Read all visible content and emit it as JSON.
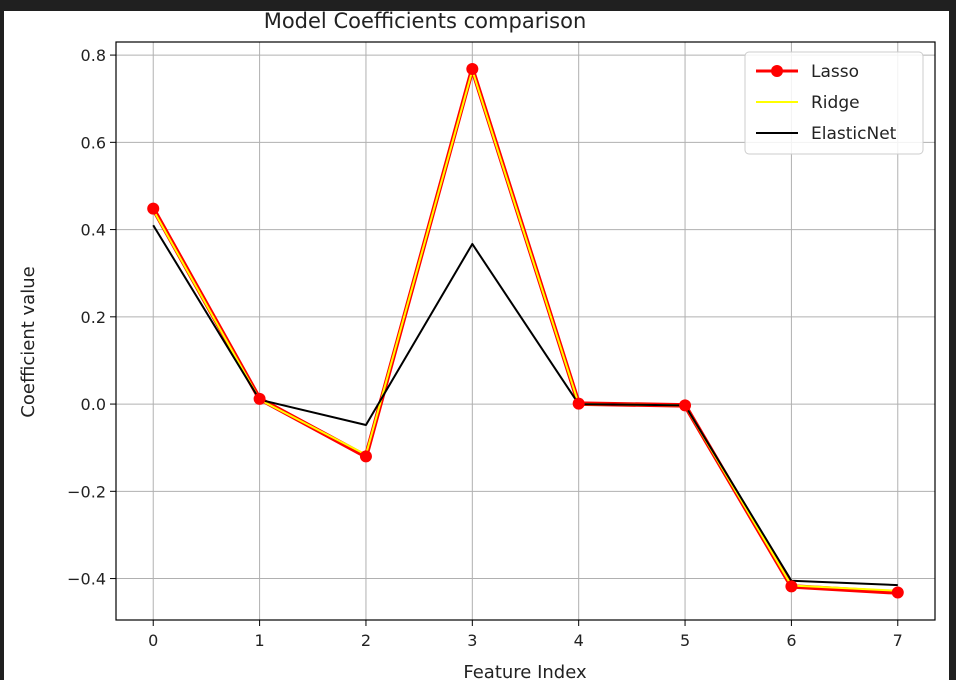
{
  "chart_data": {
    "type": "line",
    "title": "Model Coefficients comparison",
    "xlabel": "Feature Index",
    "ylabel": "Coefficient value",
    "x": [
      0,
      1,
      2,
      3,
      4,
      5,
      6,
      7
    ],
    "xticks": [
      0,
      1,
      2,
      3,
      4,
      5,
      6,
      7
    ],
    "xtick_labels": [
      "0",
      "1",
      "2",
      "3",
      "4",
      "5",
      "6",
      "7"
    ],
    "yticks": [
      -0.4,
      -0.2,
      0.0,
      0.2,
      0.4,
      0.6,
      0.8
    ],
    "ytick_labels": [
      "−0.4",
      "−0.2",
      "0.0",
      "0.2",
      "0.4",
      "0.6",
      "0.8"
    ],
    "xlim": [
      -0.35,
      7.35
    ],
    "ylim": [
      -0.495,
      0.83
    ],
    "grid": true,
    "legend_position": "top-right",
    "series": [
      {
        "name": "Lasso",
        "color": "#ff0000",
        "marker": "circle",
        "values": [
          0.448,
          0.012,
          -0.12,
          0.768,
          0.001,
          -0.003,
          -0.418,
          -0.432
        ]
      },
      {
        "name": "Ridge",
        "color": "#ffff00",
        "marker": "none",
        "values": [
          0.445,
          0.01,
          -0.116,
          0.765,
          0.0,
          -0.003,
          -0.416,
          -0.428
        ]
      },
      {
        "name": "ElasticNet",
        "color": "#000000",
        "marker": "none",
        "values": [
          0.41,
          0.01,
          -0.048,
          0.367,
          0.0,
          -0.003,
          -0.405,
          -0.415
        ]
      }
    ]
  }
}
